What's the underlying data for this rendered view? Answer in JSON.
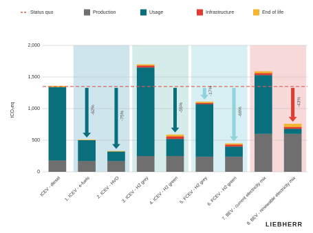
{
  "chart_data": {
    "type": "stacked_bar",
    "y_label": "tCO₂eq",
    "categories": [
      "ICEV - diesel",
      "1. ICEV - e-fuels",
      "2. ICEV - HVO",
      "3. ICEV - H2 grey",
      "4. ICEV - H2 green",
      "5. FCEV - H2 grey",
      "6. FCEV - H2 green",
      "7. BEV - current electricity mix",
      "8. BEV - renewable electricity mix"
    ],
    "series": [
      {
        "name": "Production",
        "color": "#6f6f6f",
        "values": [
          180,
          170,
          170,
          250,
          250,
          240,
          240,
          600,
          600
        ]
      },
      {
        "name": "Usage",
        "color": "#0a6f7c",
        "values": [
          1160,
          330,
          150,
          1400,
          270,
          830,
          160,
          930,
          80
        ]
      },
      {
        "name": "Infrastructure",
        "color": "#e03c31",
        "values": [
          0,
          0,
          0,
          30,
          40,
          20,
          30,
          30,
          30
        ]
      },
      {
        "name": "End of life",
        "color": "#f2b632",
        "values": [
          20,
          10,
          10,
          20,
          30,
          20,
          20,
          30,
          50
        ]
      }
    ],
    "status_quo": {
      "name": "Status quo",
      "color": "#e05a4f",
      "value": 1350
    },
    "ylim": [
      0,
      2000
    ],
    "yticks": [
      0,
      500,
      {
        "value": 1000,
        "label": "1,000"
      },
      {
        "value": 1500,
        "label": "1,500"
      },
      {
        "value": 2000,
        "label": "2,000"
      }
    ],
    "bands": [
      {
        "from": "1. ICEV - e-fuels",
        "to": "2. ICEV - HVO",
        "color": "#cfe5ee"
      },
      {
        "from": "3. ICEV - H2 grey",
        "to": "4. ICEV - H2 green",
        "color": "#d5ecea"
      },
      {
        "from": "5. FCEV - H2 grey",
        "to": "6. FCEV - H2 green",
        "color": "#d8f0f3"
      },
      {
        "from": "7. BEV - current electricity mix",
        "to": "8. BEV - renewable electricity mix",
        "color": "#f8d9d9"
      }
    ],
    "annotations": [
      {
        "category": "1. ICEV - e-fuels",
        "text": "-62%",
        "color": "#0a6f7c"
      },
      {
        "category": "2. ICEV - HVO",
        "text": "-75%",
        "color": "#0a6f7c"
      },
      {
        "category": "4. ICEV - H2 green",
        "text": "-55%",
        "color": "#0a6f7c"
      },
      {
        "category": "5. FCEV - H2 grey",
        "text": "-17%",
        "color": "#8fd3dc"
      },
      {
        "category": "6. FCEV - H2 green",
        "text": "-66%",
        "color": "#8fd3dc"
      },
      {
        "category": "8. BEV - renewable electricity mix",
        "text": "-43%",
        "color": "#e03c31"
      }
    ],
    "logo": "LIEBHERR"
  }
}
